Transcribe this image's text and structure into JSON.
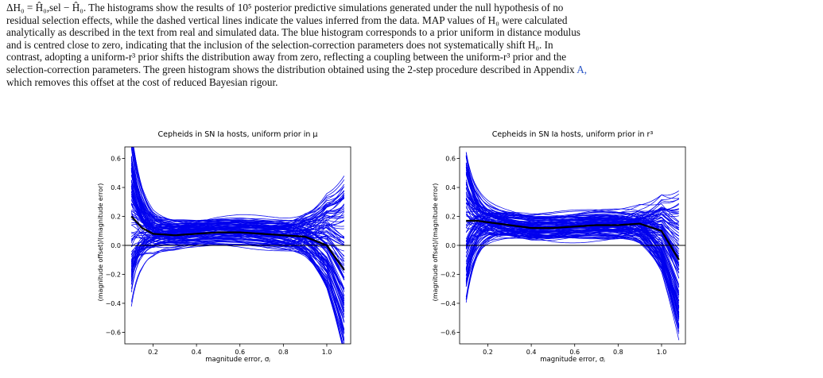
{
  "caption": {
    "line0": "ΔH₀ = Ĥ₀,sel − Ĥ₀. The histograms show the results of 10⁵ posterior predictive simulations generated under the null hypothesis of no",
    "line1": "residual selection effects, while the dashed vertical lines indicate the values inferred from the data. MAP values of H₀ were calculated",
    "line2": "analytically as described in the text from real and simulated data. The blue histogram corresponds to a prior uniform in distance modulus",
    "line3": "and is centred close to zero, indicating that the inclusion of the selection-correction parameters does not systematically shift H₀. In",
    "line4": "contrast, adopting a uniform-r³ prior shifts the distribution away from zero, reflecting a coupling between the uniform-r³ prior and the",
    "line5": "selection-correction parameters. The green histogram shows the distribution obtained using the 2-step procedure described in Appendix",
    "line5_link": "A,",
    "line6": "which removes this offset at the cost of reduced Bayesian rigour."
  },
  "colors": {
    "curves": "#0000ee",
    "mean": "#000000",
    "zero_line": "#000000",
    "link": "#2a56c6"
  },
  "chart_data": [
    {
      "type": "line",
      "title": "Cepheids in SN Ia hosts, uniform prior in μ",
      "xlabel": "magnitude error, σⱼ",
      "ylabel": "(magnitude offset)/(magnitude error)",
      "xlim": [
        0.07,
        1.11
      ],
      "ylim": [
        -0.68,
        0.68
      ],
      "xticks": [
        0.2,
        0.4,
        0.6,
        0.8,
        1.0
      ],
      "xtick_labels": [
        "0.2",
        "0.4",
        "0.6",
        "0.8",
        "1.0"
      ],
      "yticks": [
        -0.6,
        -0.4,
        -0.2,
        0.0,
        0.2,
        0.4,
        0.6
      ],
      "ytick_labels": [
        "−0.6",
        "−0.4",
        "−0.2",
        "0.0",
        "0.2",
        "0.4",
        "0.6"
      ],
      "zero_line": 0.0,
      "n_curves": 110,
      "x": [
        0.1,
        0.15,
        0.2,
        0.3,
        0.4,
        0.5,
        0.6,
        0.7,
        0.8,
        0.9,
        1.0,
        1.08
      ],
      "mean_curve": [
        0.2,
        0.12,
        0.08,
        0.07,
        0.08,
        0.09,
        0.09,
        0.08,
        0.07,
        0.06,
        0.0,
        -0.17
      ],
      "spread_core": 0.09,
      "spread_edge_left": 0.55,
      "spread_edge_right": 0.6
    },
    {
      "type": "line",
      "title": "Cepheids in SN Ia hosts, uniform prior in r³",
      "xlabel": "magnitude error, σⱼ",
      "ylabel": "(magnitude offset)/(magnitude error)",
      "xlim": [
        0.07,
        1.11
      ],
      "ylim": [
        -0.68,
        0.68
      ],
      "xticks": [
        0.2,
        0.4,
        0.6,
        0.8,
        1.0
      ],
      "xtick_labels": [
        "0.2",
        "0.4",
        "0.6",
        "0.8",
        "1.0"
      ],
      "yticks": [
        -0.6,
        -0.4,
        -0.2,
        0.0,
        0.2,
        0.4,
        0.6
      ],
      "ytick_labels": [
        "−0.6",
        "−0.4",
        "−0.2",
        "0.0",
        "0.2",
        "0.4",
        "0.6"
      ],
      "zero_line": 0.0,
      "n_curves": 110,
      "x": [
        0.1,
        0.15,
        0.2,
        0.3,
        0.4,
        0.5,
        0.6,
        0.7,
        0.8,
        0.9,
        1.0,
        1.08
      ],
      "mean_curve": [
        0.17,
        0.17,
        0.16,
        0.14,
        0.12,
        0.12,
        0.13,
        0.14,
        0.14,
        0.15,
        0.1,
        -0.1
      ],
      "spread_core": 0.08,
      "spread_edge_left": 0.5,
      "spread_edge_right": 0.5
    }
  ]
}
